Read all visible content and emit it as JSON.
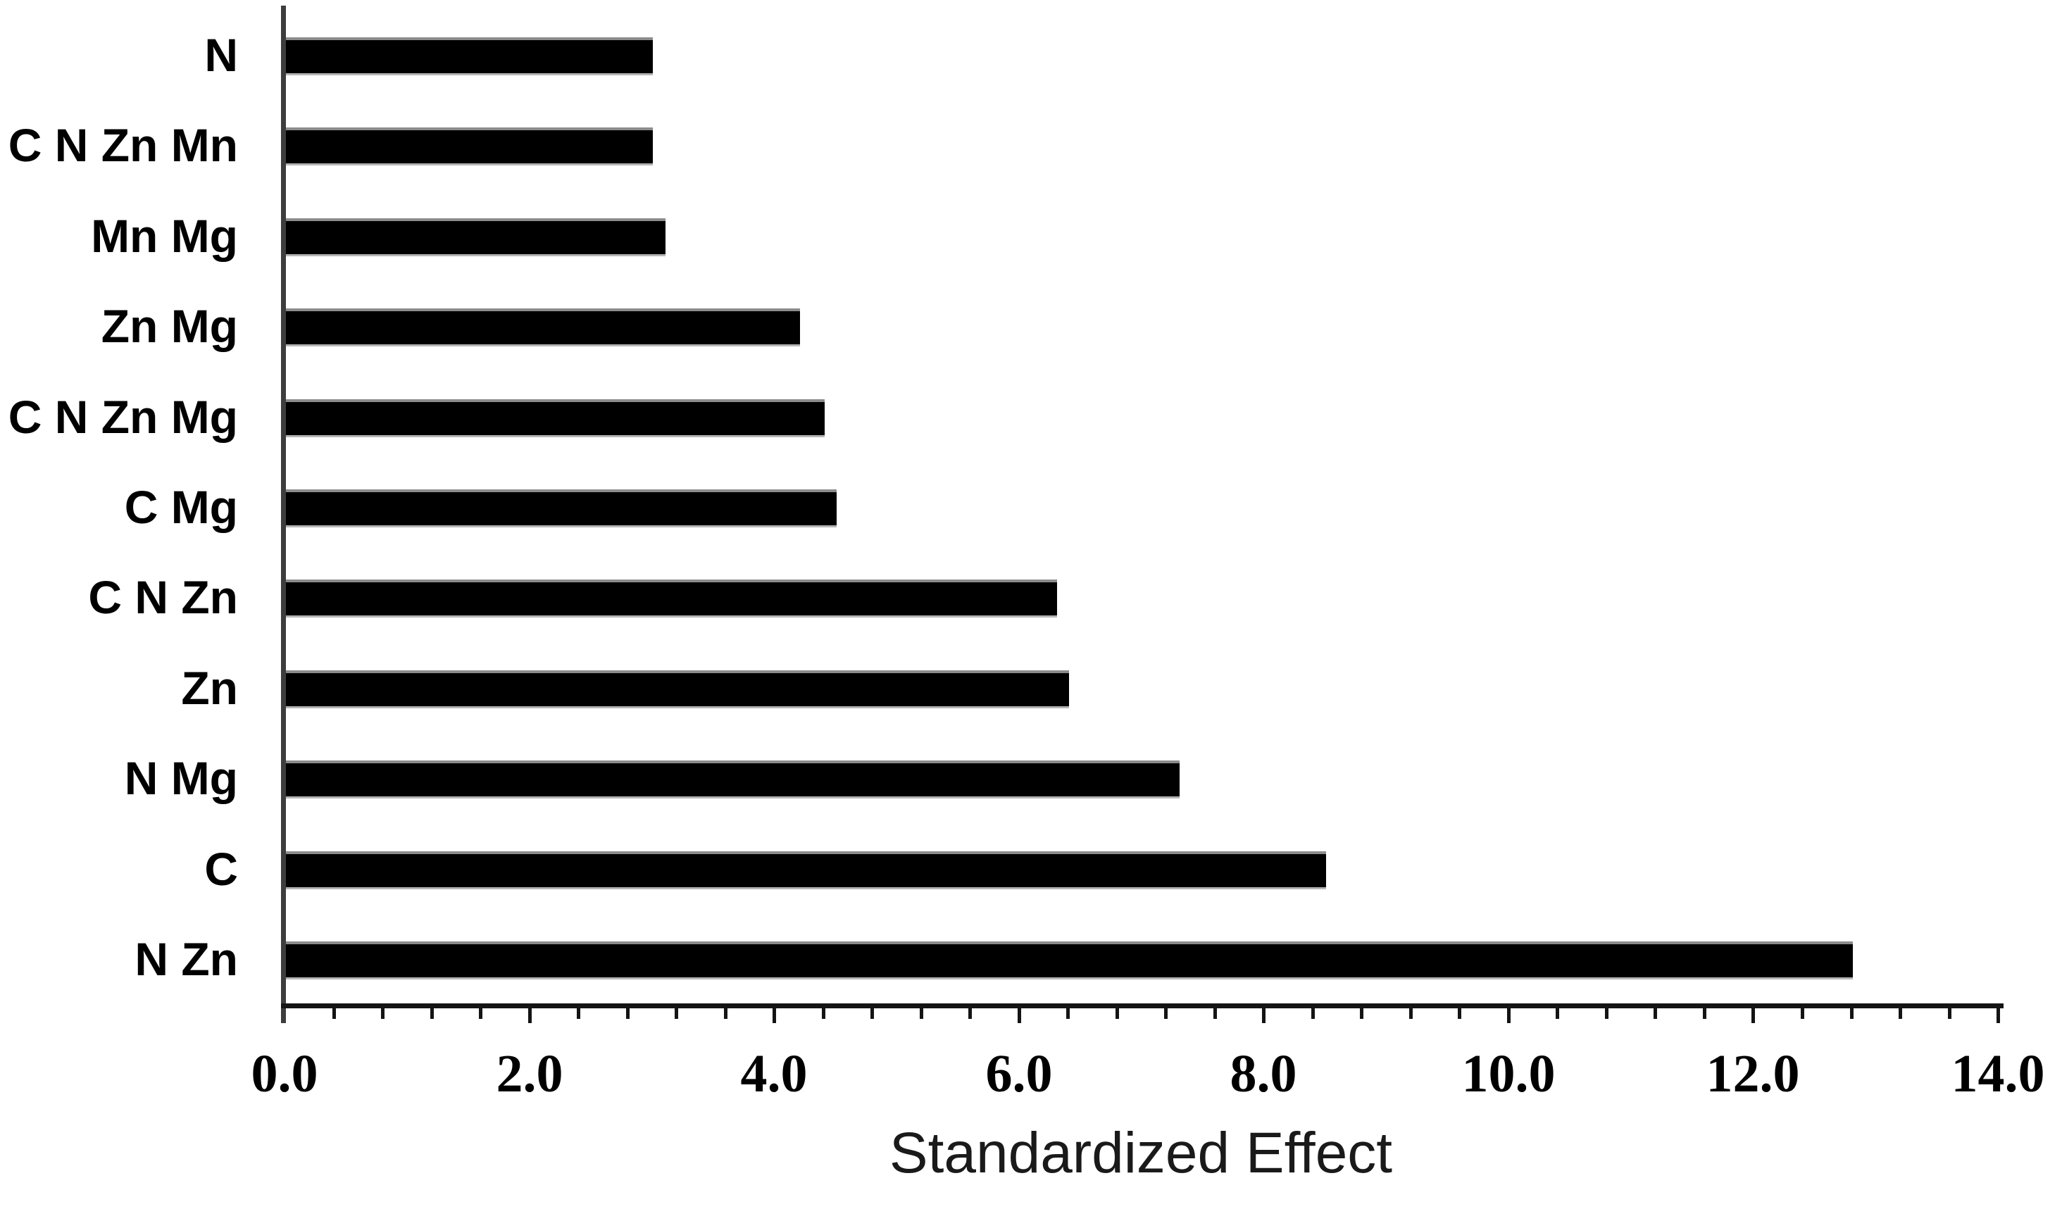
{
  "chart_data": {
    "type": "bar",
    "orientation": "horizontal",
    "title": "",
    "xlabel": "Standardized Effect",
    "ylabel": "",
    "categories": [
      "N",
      "C N Zn Mn",
      "Mn Mg",
      "Zn Mg",
      "C N Zn Mg",
      "C Mg",
      "C N Zn",
      "Zn",
      "N Mg",
      "C",
      "N Zn"
    ],
    "values": [
      3.0,
      3.0,
      3.1,
      4.2,
      4.4,
      4.5,
      6.3,
      6.4,
      7.3,
      8.5,
      12.8
    ],
    "xlim": [
      0.0,
      14.0
    ],
    "xtick_labels": [
      "0.0",
      "2.0",
      "4.0",
      "6.0",
      "8.0",
      "10.0",
      "12.0",
      "14.0"
    ],
    "xtick_step": 2.0,
    "minor_tick_step": 0.4,
    "bar_color": "#000000",
    "background_color": "#ffffff",
    "grid": false,
    "legend": false
  }
}
